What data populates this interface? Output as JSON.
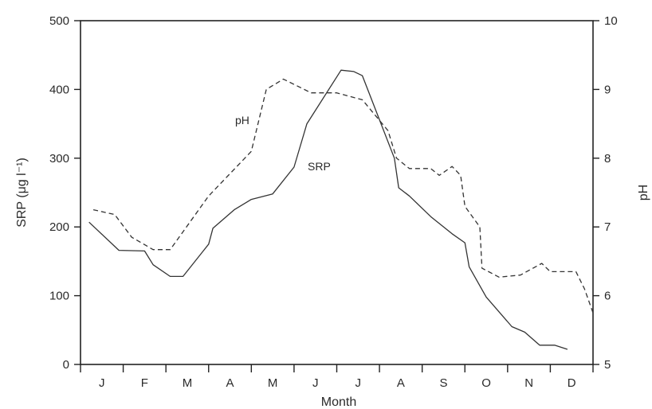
{
  "chart_data": {
    "type": "line",
    "xlabel": "Month",
    "ylabel_left": "SRP (μg l⁻¹)",
    "ylabel_right": "pH",
    "categories": [
      "J",
      "F",
      "M",
      "A",
      "M",
      "J",
      "J",
      "A",
      "S",
      "O",
      "N",
      "D"
    ],
    "x_range": [
      0,
      12
    ],
    "y_left_range": [
      0,
      500
    ],
    "y_left_ticks": [
      0,
      100,
      200,
      300,
      400,
      500
    ],
    "y_right_range": [
      5,
      10
    ],
    "y_right_ticks": [
      5,
      6,
      7,
      8,
      9,
      10
    ],
    "grid": false,
    "series": [
      {
        "name": "SRP",
        "axis": "left",
        "style": "solid",
        "points": [
          [
            0.2,
            207
          ],
          [
            0.9,
            166
          ],
          [
            1.5,
            165
          ],
          [
            1.7,
            145
          ],
          [
            2.1,
            128
          ],
          [
            2.4,
            128
          ],
          [
            3.0,
            175
          ],
          [
            3.1,
            198
          ],
          [
            3.6,
            225
          ],
          [
            4.0,
            240
          ],
          [
            4.5,
            248
          ],
          [
            5.0,
            287
          ],
          [
            5.3,
            350
          ],
          [
            6.1,
            428
          ],
          [
            6.4,
            426
          ],
          [
            6.6,
            420
          ],
          [
            7.35,
            300
          ],
          [
            7.45,
            257
          ],
          [
            7.7,
            245
          ],
          [
            8.2,
            215
          ],
          [
            8.7,
            190
          ],
          [
            9.0,
            177
          ],
          [
            9.1,
            142
          ],
          [
            9.5,
            98
          ],
          [
            10.1,
            55
          ],
          [
            10.4,
            47
          ],
          [
            10.75,
            28
          ],
          [
            11.1,
            28
          ],
          [
            11.4,
            22
          ]
        ]
      },
      {
        "name": "pH",
        "axis": "right",
        "style": "dashed",
        "points": [
          [
            0.3,
            7.25
          ],
          [
            0.8,
            7.18
          ],
          [
            1.2,
            6.85
          ],
          [
            1.7,
            6.67
          ],
          [
            2.1,
            6.67
          ],
          [
            3.0,
            7.45
          ],
          [
            4.0,
            8.1
          ],
          [
            4.35,
            9.0
          ],
          [
            4.75,
            9.15
          ],
          [
            5.4,
            8.95
          ],
          [
            6.0,
            8.95
          ],
          [
            6.6,
            8.85
          ],
          [
            7.2,
            8.4
          ],
          [
            7.4,
            8.0
          ],
          [
            7.7,
            7.85
          ],
          [
            8.2,
            7.85
          ],
          [
            8.4,
            7.75
          ],
          [
            8.7,
            7.88
          ],
          [
            8.9,
            7.75
          ],
          [
            9.0,
            7.3
          ],
          [
            9.35,
            7.0
          ],
          [
            9.4,
            6.4
          ],
          [
            9.8,
            6.27
          ],
          [
            10.3,
            6.3
          ],
          [
            10.8,
            6.47
          ],
          [
            11.0,
            6.35
          ],
          [
            11.6,
            6.35
          ],
          [
            11.8,
            6.1
          ],
          [
            12.0,
            5.75
          ]
        ]
      }
    ]
  }
}
